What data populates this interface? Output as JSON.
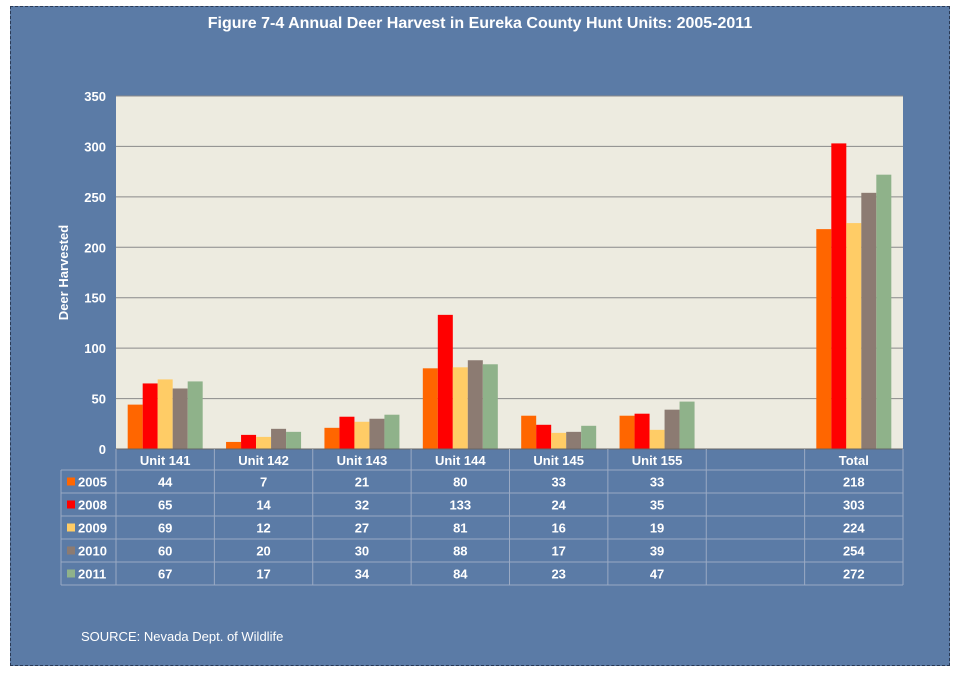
{
  "chart_data": {
    "type": "bar",
    "title": "Figure 7-4 Annual Deer Harvest in Eureka County Hunt Units: 2005-2011",
    "xlabel": "",
    "ylabel": "Deer Harvested",
    "ylim": [
      0,
      350
    ],
    "yticks": [
      0,
      50,
      100,
      150,
      200,
      250,
      300,
      350
    ],
    "grid": true,
    "legend": "data-table-left",
    "categories": [
      "Unit 141",
      "Unit 142",
      "Unit 143",
      "Unit 144",
      "Unit 145",
      "Unit 155",
      "",
      "Total"
    ],
    "series": [
      {
        "name": "2005",
        "color": "#ff6600",
        "values": [
          44,
          7,
          21,
          80,
          33,
          33,
          null,
          218
        ]
      },
      {
        "name": "2008",
        "color": "#ff0000",
        "values": [
          65,
          14,
          32,
          133,
          24,
          35,
          null,
          303
        ]
      },
      {
        "name": "2009",
        "color": "#ffcc66",
        "values": [
          69,
          12,
          27,
          81,
          16,
          19,
          null,
          224
        ]
      },
      {
        "name": "2010",
        "color": "#8c7b72",
        "values": [
          60,
          20,
          30,
          88,
          17,
          39,
          null,
          254
        ]
      },
      {
        "name": "2011",
        "color": "#8fb28a",
        "values": [
          67,
          17,
          34,
          84,
          23,
          47,
          null,
          272
        ]
      }
    ],
    "plot_background": "#edebe0",
    "frame_background": "#5b7ba6"
  },
  "source": "SOURCE: Nevada Dept. of Wildlife"
}
